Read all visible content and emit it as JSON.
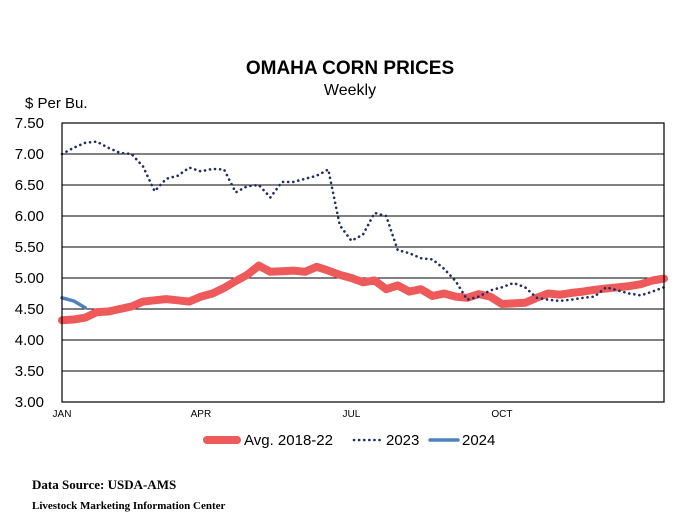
{
  "chart_data": {
    "type": "line",
    "title": "OMAHA CORN PRICES",
    "subtitle": "Weekly",
    "ylabel": "$ Per Bu.",
    "xlabel": "",
    "ylim": [
      3.0,
      7.5
    ],
    "yticks": [
      "7.50",
      "7.00",
      "6.50",
      "6.00",
      "5.50",
      "5.00",
      "4.50",
      "4.00",
      "3.50",
      "3.00"
    ],
    "ytick_values": [
      7.5,
      7.0,
      6.5,
      6.0,
      5.5,
      5.0,
      4.5,
      4.0,
      3.5,
      3.0
    ],
    "x_range": [
      1,
      53
    ],
    "xticks": [
      {
        "label": "JAN",
        "week": 1
      },
      {
        "label": "APR",
        "week": 13
      },
      {
        "label": "JUL",
        "week": 26
      },
      {
        "label": "OCT",
        "week": 39
      }
    ],
    "grid": "horizontal",
    "legend": "bottom",
    "series": [
      {
        "name": "Avg. 2018-22",
        "color": "#ee5a5a",
        "style": "solid-thick",
        "x": [
          1,
          2,
          3,
          4,
          5,
          6,
          7,
          8,
          9,
          10,
          11,
          12,
          13,
          14,
          15,
          16,
          17,
          18,
          19,
          20,
          21,
          22,
          23,
          24,
          25,
          26,
          27,
          28,
          29,
          30,
          31,
          32,
          33,
          34,
          35,
          36,
          37,
          38,
          39,
          40,
          41,
          42,
          43,
          44,
          45,
          46,
          47,
          48,
          49,
          50,
          51,
          52,
          53
        ],
        "values": [
          4.32,
          4.33,
          4.36,
          4.45,
          4.46,
          4.5,
          4.54,
          4.62,
          4.64,
          4.66,
          4.64,
          4.62,
          4.7,
          4.75,
          4.84,
          4.95,
          5.05,
          5.2,
          5.1,
          5.11,
          5.12,
          5.1,
          5.18,
          5.12,
          5.05,
          5.0,
          4.93,
          4.96,
          4.82,
          4.88,
          4.78,
          4.82,
          4.71,
          4.75,
          4.7,
          4.68,
          4.74,
          4.7,
          4.58,
          4.59,
          4.6,
          4.68,
          4.75,
          4.73,
          4.76,
          4.78,
          4.81,
          4.83,
          4.85,
          4.87,
          4.9,
          4.96,
          4.99
        ]
      },
      {
        "name": "2023",
        "color": "#1f2d64",
        "style": "dotted",
        "x": [
          1,
          2,
          3,
          4,
          5,
          6,
          7,
          8,
          9,
          10,
          11,
          12,
          13,
          14,
          15,
          16,
          17,
          18,
          19,
          20,
          21,
          22,
          23,
          24,
          25,
          26,
          27,
          28,
          29,
          30,
          31,
          32,
          33,
          34,
          35,
          36,
          37,
          38,
          39,
          40,
          41,
          42,
          43,
          44,
          45,
          46,
          47,
          48,
          49,
          50,
          51,
          52,
          53
        ],
        "values": [
          7.0,
          7.1,
          7.18,
          7.2,
          7.1,
          7.02,
          7.0,
          6.8,
          6.4,
          6.6,
          6.65,
          6.78,
          6.72,
          6.76,
          6.75,
          6.38,
          6.48,
          6.5,
          6.3,
          6.55,
          6.55,
          6.6,
          6.65,
          6.75,
          5.85,
          5.6,
          5.7,
          6.05,
          6.0,
          5.45,
          5.4,
          5.32,
          5.3,
          5.15,
          4.95,
          4.65,
          4.7,
          4.8,
          4.85,
          4.92,
          4.85,
          4.68,
          4.65,
          4.63,
          4.65,
          4.68,
          4.7,
          4.85,
          4.8,
          4.75,
          4.72,
          4.78,
          4.85
        ]
      },
      {
        "name": "2024",
        "color": "#4f81bd",
        "style": "solid",
        "x": [
          1,
          2,
          3
        ],
        "values": [
          4.68,
          4.63,
          4.52
        ]
      }
    ]
  },
  "footer": {
    "source": "Data Source:  USDA-AMS",
    "center": "Livestock Marketing Information  Center"
  }
}
